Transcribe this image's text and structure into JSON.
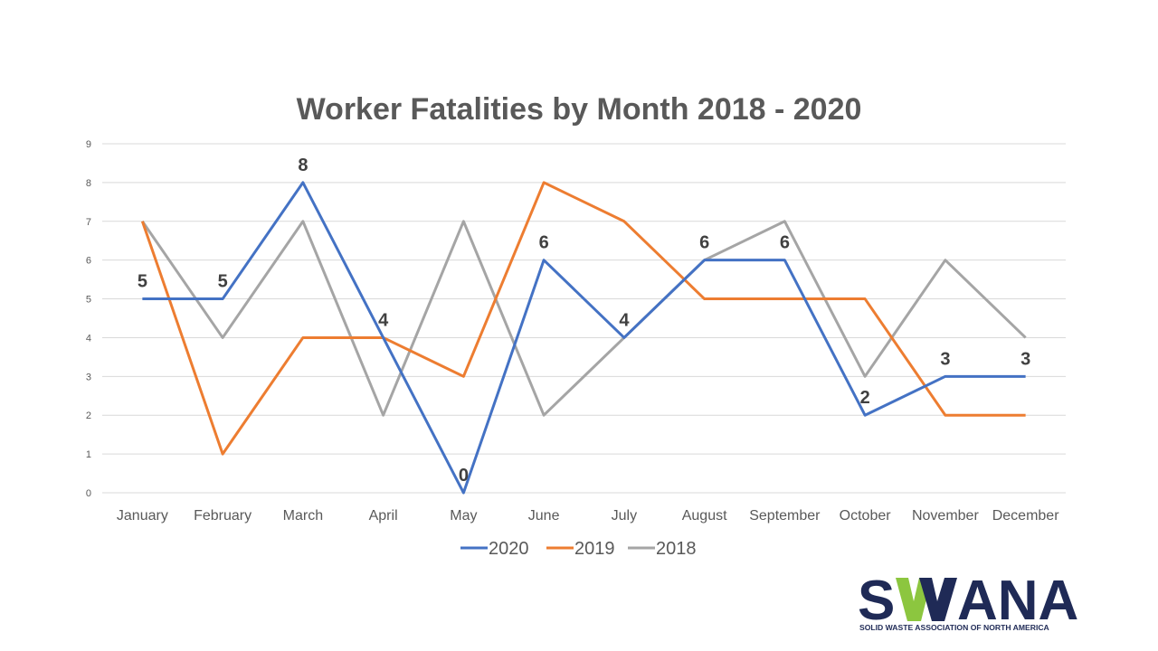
{
  "chart_data": {
    "type": "line",
    "title": "Worker Fatalities by Month 2018 - 2020",
    "categories": [
      "January",
      "February",
      "March",
      "April",
      "May",
      "June",
      "July",
      "August",
      "September",
      "October",
      "November",
      "December"
    ],
    "ylim": [
      0,
      9
    ],
    "yticks": [
      0,
      1,
      2,
      3,
      4,
      5,
      6,
      7,
      8,
      9
    ],
    "grid": true,
    "legend_position": "bottom",
    "series": [
      {
        "name": "2020",
        "color": "#4472c4",
        "values": [
          5,
          5,
          8,
          4,
          0,
          6,
          4,
          6,
          6,
          2,
          3,
          3
        ],
        "data_labels": true
      },
      {
        "name": "2019",
        "color": "#ed7d31",
        "values": [
          7,
          1,
          4,
          4,
          3,
          8,
          7,
          5,
          5,
          5,
          2,
          2
        ],
        "data_labels": false
      },
      {
        "name": "2018",
        "color": "#a5a5a5",
        "values": [
          7,
          4,
          7,
          2,
          7,
          2,
          4,
          6,
          7,
          3,
          6,
          4
        ],
        "data_labels": false
      }
    ]
  },
  "logo": {
    "name": "SWANA",
    "tagline": "SOLID WASTE ASSOCIATION OF NORTH AMERICA",
    "colors": {
      "navy": "#1f2a56",
      "green": "#8cc63f"
    }
  }
}
